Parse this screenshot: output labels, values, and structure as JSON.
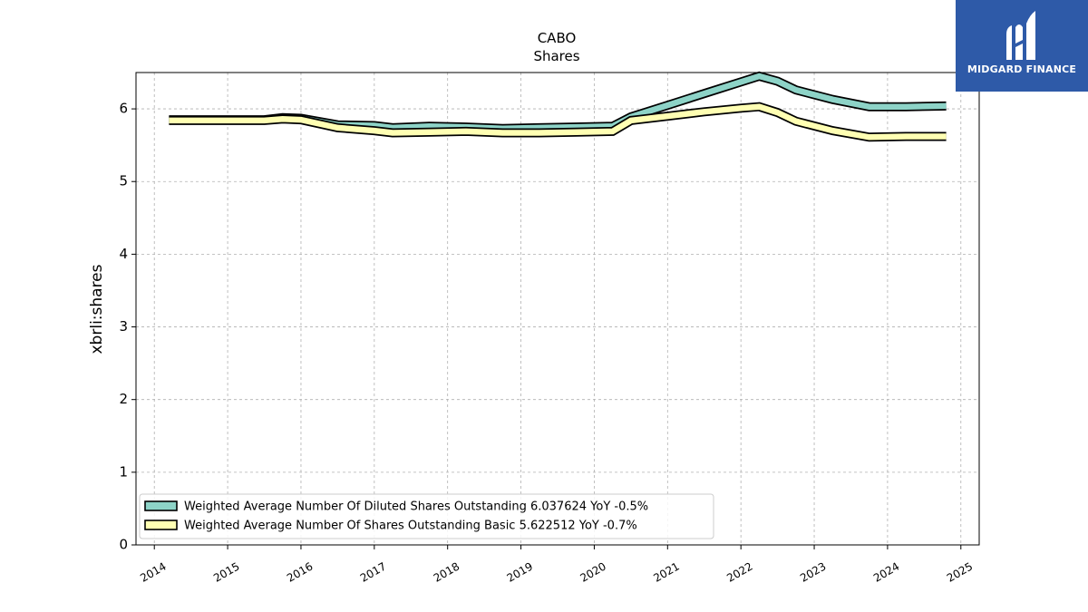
{
  "chart_data": {
    "type": "line",
    "title": "CABO",
    "subtitle": "Shares",
    "xlabel": "",
    "ylabel": "xbrli:shares",
    "ylim": [
      0,
      6.5
    ],
    "xlim": [
      2013.75,
      2025.25
    ],
    "yticks": [
      0,
      1,
      2,
      3,
      4,
      5,
      6
    ],
    "xticks": [
      2014,
      2015,
      2016,
      2017,
      2018,
      2019,
      2020,
      2021,
      2022,
      2023,
      2024,
      2025
    ],
    "grid": true,
    "legend_position": "lower left",
    "series": [
      {
        "name": "Weighted Average Number Of Diluted Shares Outstanding  6.037624 YoY -0.5%",
        "color": "#8dd3c7",
        "x": [
          2014.2,
          2015.5,
          2015.75,
          2016.0,
          2016.5,
          2017.0,
          2017.25,
          2017.75,
          2018.25,
          2018.75,
          2019.25,
          2019.75,
          2020.25,
          2020.5,
          2021.0,
          2021.5,
          2022.0,
          2022.25,
          2022.5,
          2022.75,
          2023.25,
          2023.75,
          2024.25,
          2024.8
        ],
        "y": [
          5.85,
          5.85,
          5.88,
          5.87,
          5.78,
          5.77,
          5.74,
          5.76,
          5.75,
          5.73,
          5.74,
          5.75,
          5.76,
          5.89,
          6.05,
          6.21,
          6.37,
          6.45,
          6.38,
          6.26,
          6.13,
          6.03,
          6.03,
          6.04
        ]
      },
      {
        "name": "Weighted Average Number Of Shares Outstanding Basic  5.622512 YoY -0.7%",
        "color": "#ffffb3",
        "x": [
          2014.2,
          2015.5,
          2015.75,
          2016.0,
          2016.5,
          2017.0,
          2017.25,
          2017.75,
          2018.25,
          2018.75,
          2019.25,
          2019.75,
          2020.25,
          2020.5,
          2021.0,
          2021.5,
          2022.0,
          2022.25,
          2022.5,
          2022.75,
          2023.25,
          2023.75,
          2024.25,
          2024.8
        ],
        "y": [
          5.84,
          5.84,
          5.86,
          5.85,
          5.74,
          5.7,
          5.67,
          5.68,
          5.69,
          5.67,
          5.67,
          5.68,
          5.69,
          5.84,
          5.9,
          5.96,
          6.01,
          6.03,
          5.95,
          5.83,
          5.7,
          5.61,
          5.62,
          5.62
        ]
      }
    ]
  },
  "logo": {
    "text": "MIDGARD FINANCE"
  }
}
